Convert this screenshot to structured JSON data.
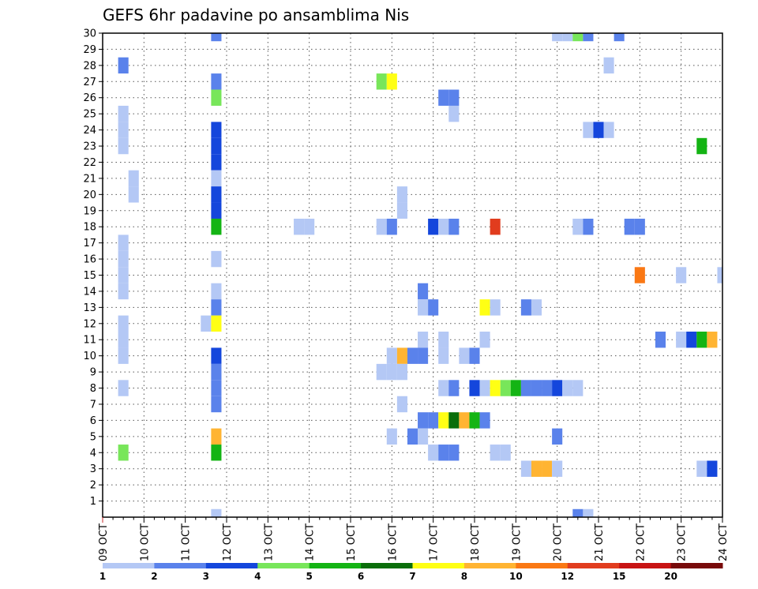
{
  "chart_data": {
    "type": "heatmap",
    "title": "GEFS 6hr padavine po ansamblima Nis",
    "xlabel": "",
    "ylabel": "",
    "grid": true,
    "x_range": [
      "09 OCT 00Z",
      "24 OCT 00Z"
    ],
    "y_range": [
      0,
      30
    ],
    "x_tick_labels": [
      "09 OCT",
      "10 OCT",
      "11 OCT",
      "12 OCT",
      "13 OCT",
      "14 OCT",
      "15 OCT",
      "16 OCT",
      "17 OCT",
      "18 OCT",
      "19 OCT",
      "20 OCT",
      "21 OCT",
      "22 OCT",
      "23 OCT",
      "24 OCT"
    ],
    "y_tick_labels": [
      "1",
      "2",
      "3",
      "4",
      "5",
      "6",
      "7",
      "8",
      "9",
      "10",
      "11",
      "12",
      "13",
      "14",
      "15",
      "16",
      "17",
      "18",
      "19",
      "20",
      "21",
      "22",
      "23",
      "24",
      "25",
      "26",
      "27",
      "28",
      "29",
      "30"
    ],
    "legend": {
      "placement": "bottom",
      "labels": [
        "1",
        "2",
        "3",
        "4",
        "5",
        "6",
        "7",
        "8",
        "10",
        "12",
        "15",
        "20"
      ],
      "colors": [
        "#b4c8f5",
        "#5a82eb",
        "#1446dc",
        "#78e65a",
        "#14b414",
        "#0a6e0a",
        "#ffff14",
        "#ffb432",
        "#fa7814",
        "#e13c1e",
        "#c81414",
        "#780a0a"
      ]
    },
    "cells": [
      {
        "member": 30,
        "time": "11 OCT 18Z",
        "bin": 2
      },
      {
        "member": 30,
        "time": "20 OCT 00Z",
        "bin": 1
      },
      {
        "member": 30,
        "time": "20 OCT 06Z",
        "bin": 1
      },
      {
        "member": 30,
        "time": "20 OCT 12Z",
        "bin": 4
      },
      {
        "member": 30,
        "time": "20 OCT 18Z",
        "bin": 2
      },
      {
        "member": 30,
        "time": "21 OCT 12Z",
        "bin": 2
      },
      {
        "member": 28,
        "time": "09 OCT 12Z",
        "bin": 2
      },
      {
        "member": 28,
        "time": "21 OCT 06Z",
        "bin": 1
      },
      {
        "member": 27,
        "time": "11 OCT 18Z",
        "bin": 2
      },
      {
        "member": 27,
        "time": "15 OCT 18Z",
        "bin": 4
      },
      {
        "member": 27,
        "time": "16 OCT 00Z",
        "bin": 7
      },
      {
        "member": 26,
        "time": "11 OCT 18Z",
        "bin": 4
      },
      {
        "member": 26,
        "time": "17 OCT 06Z",
        "bin": 2
      },
      {
        "member": 26,
        "time": "17 OCT 12Z",
        "bin": 2
      },
      {
        "member": 25,
        "time": "09 OCT 12Z",
        "bin": 1
      },
      {
        "member": 25,
        "time": "17 OCT 12Z",
        "bin": 1
      },
      {
        "member": 24,
        "time": "09 OCT 12Z",
        "bin": 1
      },
      {
        "member": 24,
        "time": "11 OCT 18Z",
        "bin": 3
      },
      {
        "member": 24,
        "time": "20 OCT 18Z",
        "bin": 1
      },
      {
        "member": 24,
        "time": "21 OCT 00Z",
        "bin": 3
      },
      {
        "member": 24,
        "time": "21 OCT 06Z",
        "bin": 1
      },
      {
        "member": 23,
        "time": "09 OCT 12Z",
        "bin": 1
      },
      {
        "member": 23,
        "time": "11 OCT 18Z",
        "bin": 3
      },
      {
        "member": 23,
        "time": "23 OCT 12Z",
        "bin": 5
      },
      {
        "member": 22,
        "time": "11 OCT 18Z",
        "bin": 3
      },
      {
        "member": 21,
        "time": "11 OCT 18Z",
        "bin": 1
      },
      {
        "member": 21,
        "time": "09 OCT 18Z",
        "bin": 1
      },
      {
        "member": 20,
        "time": "09 OCT 18Z",
        "bin": 1
      },
      {
        "member": 20,
        "time": "11 OCT 18Z",
        "bin": 3
      },
      {
        "member": 20,
        "time": "16 OCT 06Z",
        "bin": 1
      },
      {
        "member": 19,
        "time": "11 OCT 18Z",
        "bin": 3
      },
      {
        "member": 19,
        "time": "16 OCT 06Z",
        "bin": 1
      },
      {
        "member": 18,
        "time": "11 OCT 18Z",
        "bin": 5
      },
      {
        "member": 18,
        "time": "13 OCT 18Z",
        "bin": 1
      },
      {
        "member": 18,
        "time": "14 OCT 00Z",
        "bin": 1
      },
      {
        "member": 18,
        "time": "15 OCT 18Z",
        "bin": 1
      },
      {
        "member": 18,
        "time": "16 OCT 00Z",
        "bin": 2
      },
      {
        "member": 18,
        "time": "17 OCT 00Z",
        "bin": 3
      },
      {
        "member": 18,
        "time": "17 OCT 06Z",
        "bin": 1
      },
      {
        "member": 18,
        "time": "17 OCT 12Z",
        "bin": 2
      },
      {
        "member": 18,
        "time": "18 OCT 12Z",
        "bin": 12
      },
      {
        "member": 18,
        "time": "20 OCT 12Z",
        "bin": 1
      },
      {
        "member": 18,
        "time": "20 OCT 18Z",
        "bin": 2
      },
      {
        "member": 18,
        "time": "21 OCT 18Z",
        "bin": 2
      },
      {
        "member": 18,
        "time": "22 OCT 00Z",
        "bin": 2
      },
      {
        "member": 17,
        "time": "09 OCT 12Z",
        "bin": 1
      },
      {
        "member": 16,
        "time": "09 OCT 12Z",
        "bin": 1
      },
      {
        "member": 16,
        "time": "11 OCT 18Z",
        "bin": 1
      },
      {
        "member": 15,
        "time": "09 OCT 12Z",
        "bin": 1
      },
      {
        "member": 15,
        "time": "22 OCT 00Z",
        "bin": 10
      },
      {
        "member": 15,
        "time": "23 OCT 00Z",
        "bin": 1
      },
      {
        "member": 15,
        "time": "24 OCT 00Z",
        "bin": 1
      },
      {
        "member": 14,
        "time": "09 OCT 12Z",
        "bin": 1
      },
      {
        "member": 14,
        "time": "11 OCT 18Z",
        "bin": 1
      },
      {
        "member": 14,
        "time": "16 OCT 18Z",
        "bin": 2
      },
      {
        "member": 13,
        "time": "11 OCT 18Z",
        "bin": 2
      },
      {
        "member": 13,
        "time": "16 OCT 18Z",
        "bin": 1
      },
      {
        "member": 13,
        "time": "17 OCT 00Z",
        "bin": 2
      },
      {
        "member": 13,
        "time": "18 OCT 06Z",
        "bin": 7
      },
      {
        "member": 13,
        "time": "18 OCT 12Z",
        "bin": 1
      },
      {
        "member": 13,
        "time": "19 OCT 06Z",
        "bin": 2
      },
      {
        "member": 13,
        "time": "19 OCT 12Z",
        "bin": 1
      },
      {
        "member": 12,
        "time": "09 OCT 12Z",
        "bin": 1
      },
      {
        "member": 12,
        "time": "11 OCT 12Z",
        "bin": 1
      },
      {
        "member": 12,
        "time": "11 OCT 18Z",
        "bin": 7
      },
      {
        "member": 11,
        "time": "09 OCT 12Z",
        "bin": 1
      },
      {
        "member": 11,
        "time": "16 OCT 18Z",
        "bin": 1
      },
      {
        "member": 11,
        "time": "17 OCT 06Z",
        "bin": 1
      },
      {
        "member": 11,
        "time": "18 OCT 06Z",
        "bin": 1
      },
      {
        "member": 11,
        "time": "22 OCT 12Z",
        "bin": 2
      },
      {
        "member": 11,
        "time": "23 OCT 00Z",
        "bin": 1
      },
      {
        "member": 11,
        "time": "23 OCT 06Z",
        "bin": 3
      },
      {
        "member": 11,
        "time": "23 OCT 12Z",
        "bin": 5
      },
      {
        "member": 11,
        "time": "23 OCT 18Z",
        "bin": 8
      },
      {
        "member": 10,
        "time": "09 OCT 12Z",
        "bin": 1
      },
      {
        "member": 10,
        "time": "11 OCT 18Z",
        "bin": 3
      },
      {
        "member": 10,
        "time": "16 OCT 00Z",
        "bin": 1
      },
      {
        "member": 10,
        "time": "16 OCT 06Z",
        "bin": 8
      },
      {
        "member": 10,
        "time": "16 OCT 12Z",
        "bin": 2
      },
      {
        "member": 10,
        "time": "16 OCT 18Z",
        "bin": 2
      },
      {
        "member": 10,
        "time": "17 OCT 06Z",
        "bin": 1
      },
      {
        "member": 10,
        "time": "17 OCT 18Z",
        "bin": 1
      },
      {
        "member": 10,
        "time": "18 OCT 00Z",
        "bin": 2
      },
      {
        "member": 9,
        "time": "11 OCT 18Z",
        "bin": 2
      },
      {
        "member": 9,
        "time": "15 OCT 18Z",
        "bin": 1
      },
      {
        "member": 9,
        "time": "16 OCT 00Z",
        "bin": 1
      },
      {
        "member": 9,
        "time": "16 OCT 06Z",
        "bin": 1
      },
      {
        "member": 8,
        "time": "09 OCT 12Z",
        "bin": 1
      },
      {
        "member": 8,
        "time": "11 OCT 18Z",
        "bin": 2
      },
      {
        "member": 8,
        "time": "17 OCT 06Z",
        "bin": 1
      },
      {
        "member": 8,
        "time": "17 OCT 12Z",
        "bin": 2
      },
      {
        "member": 8,
        "time": "18 OCT 00Z",
        "bin": 3
      },
      {
        "member": 8,
        "time": "18 OCT 06Z",
        "bin": 1
      },
      {
        "member": 8,
        "time": "18 OCT 12Z",
        "bin": 7
      },
      {
        "member": 8,
        "time": "18 OCT 18Z",
        "bin": 4
      },
      {
        "member": 8,
        "time": "19 OCT 00Z",
        "bin": 5
      },
      {
        "member": 8,
        "time": "19 OCT 06Z",
        "bin": 2
      },
      {
        "member": 8,
        "time": "19 OCT 12Z",
        "bin": 2
      },
      {
        "member": 8,
        "time": "19 OCT 18Z",
        "bin": 2
      },
      {
        "member": 8,
        "time": "20 OCT 00Z",
        "bin": 3
      },
      {
        "member": 8,
        "time": "20 OCT 06Z",
        "bin": 1
      },
      {
        "member": 8,
        "time": "20 OCT 12Z",
        "bin": 1
      },
      {
        "member": 7,
        "time": "11 OCT 18Z",
        "bin": 2
      },
      {
        "member": 7,
        "time": "16 OCT 06Z",
        "bin": 1
      },
      {
        "member": 6,
        "time": "16 OCT 18Z",
        "bin": 2
      },
      {
        "member": 6,
        "time": "17 OCT 00Z",
        "bin": 2
      },
      {
        "member": 6,
        "time": "17 OCT 06Z",
        "bin": 7
      },
      {
        "member": 6,
        "time": "17 OCT 12Z",
        "bin": 6
      },
      {
        "member": 6,
        "time": "17 OCT 18Z",
        "bin": 8
      },
      {
        "member": 6,
        "time": "18 OCT 00Z",
        "bin": 5
      },
      {
        "member": 6,
        "time": "18 OCT 06Z",
        "bin": 2
      },
      {
        "member": 5,
        "time": "11 OCT 18Z",
        "bin": 8
      },
      {
        "member": 5,
        "time": "16 OCT 00Z",
        "bin": 1
      },
      {
        "member": 5,
        "time": "16 OCT 12Z",
        "bin": 2
      },
      {
        "member": 5,
        "time": "16 OCT 18Z",
        "bin": 1
      },
      {
        "member": 5,
        "time": "20 OCT 00Z",
        "bin": 2
      },
      {
        "member": 4,
        "time": "09 OCT 12Z",
        "bin": 4
      },
      {
        "member": 4,
        "time": "11 OCT 18Z",
        "bin": 5
      },
      {
        "member": 4,
        "time": "17 OCT 00Z",
        "bin": 1
      },
      {
        "member": 4,
        "time": "17 OCT 06Z",
        "bin": 2
      },
      {
        "member": 4,
        "time": "17 OCT 12Z",
        "bin": 2
      },
      {
        "member": 4,
        "time": "18 OCT 12Z",
        "bin": 1
      },
      {
        "member": 4,
        "time": "18 OCT 18Z",
        "bin": 1
      },
      {
        "member": 3,
        "time": "19 OCT 06Z",
        "bin": 1
      },
      {
        "member": 3,
        "time": "19 OCT 12Z",
        "bin": 8
      },
      {
        "member": 3,
        "time": "19 OCT 18Z",
        "bin": 8
      },
      {
        "member": 3,
        "time": "20 OCT 00Z",
        "bin": 1
      },
      {
        "member": 3,
        "time": "23 OCT 12Z",
        "bin": 1
      },
      {
        "member": 3,
        "time": "23 OCT 18Z",
        "bin": 3
      },
      {
        "member": 0,
        "time": "11 OCT 18Z",
        "bin": 1
      },
      {
        "member": 0,
        "time": "20 OCT 12Z",
        "bin": 2
      },
      {
        "member": 0,
        "time": "20 OCT 18Z",
        "bin": 1
      }
    ]
  }
}
